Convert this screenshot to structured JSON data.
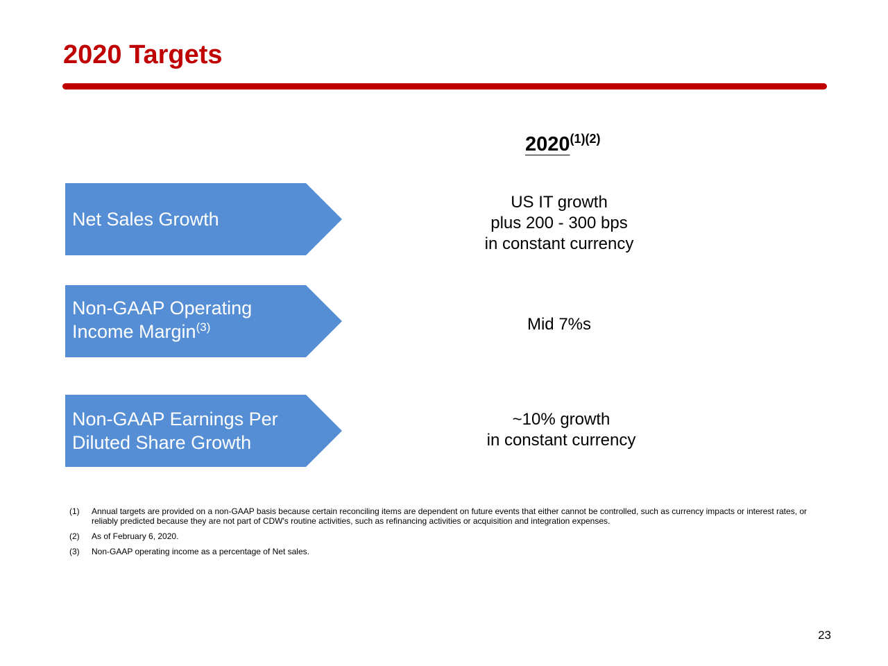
{
  "title": "2020 Targets",
  "column_header": {
    "year": "2020",
    "superscript": "(1)(2)"
  },
  "rows": [
    {
      "label_lines": [
        "Net Sales Growth"
      ],
      "label_sup": "",
      "value_lines": [
        "US IT growth",
        "plus 200 - 300 bps",
        "in constant currency"
      ]
    },
    {
      "label_lines": [
        "Non-GAAP Operating",
        "Income Margin"
      ],
      "label_sup": "(3)",
      "value_lines": [
        "Mid 7%s"
      ]
    },
    {
      "label_lines": [
        "Non-GAAP Earnings Per",
        "Diluted Share Growth"
      ],
      "label_sup": "",
      "value_lines": [
        "~10% growth",
        "in constant currency"
      ]
    }
  ],
  "footnotes": [
    {
      "num": "(1)",
      "text": "Annual targets are provided on a non-GAAP basis because certain reconciling items are dependent on future events that either cannot be controlled, such as currency impacts or interest rates, or reliably predicted because they are not part of CDW's routine activities, such as refinancing activities or acquisition and integration expenses."
    },
    {
      "num": "(2)",
      "text": "As of February 6, 2020."
    },
    {
      "num": "(3)",
      "text": "Non-GAAP operating income as a percentage of Net sales."
    }
  ],
  "page_number": "23",
  "colors": {
    "title_red": "#C00000",
    "arrow_blue": "#558ED5"
  }
}
